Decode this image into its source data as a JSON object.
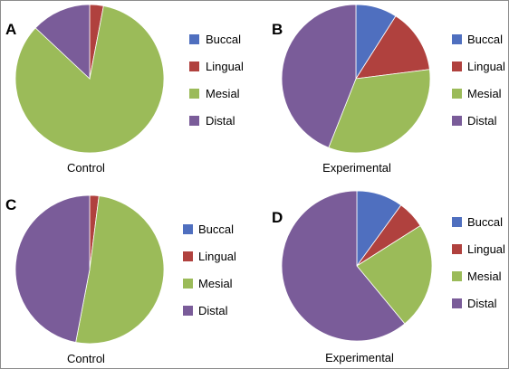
{
  "colors": {
    "Buccal": "#4f6fbf",
    "Lingual": "#b0413e",
    "Mesial": "#9bbb59",
    "Distal": "#7a5c99"
  },
  "chart_data": [
    {
      "type": "pie",
      "panel": "A",
      "caption": "Control",
      "legend_position": "right",
      "slices": [
        {
          "label": "Buccal",
          "value": 0
        },
        {
          "label": "Lingual",
          "value": 3
        },
        {
          "label": "Mesial",
          "value": 84
        },
        {
          "label": "Distal",
          "value": 13
        }
      ]
    },
    {
      "type": "pie",
      "panel": "B",
      "caption": "Experimental",
      "legend_position": "right",
      "slices": [
        {
          "label": "Buccal",
          "value": 9
        },
        {
          "label": "Lingual",
          "value": 14
        },
        {
          "label": "Mesial",
          "value": 33
        },
        {
          "label": "Distal",
          "value": 44
        }
      ]
    },
    {
      "type": "pie",
      "panel": "C",
      "caption": "Control",
      "legend_position": "right",
      "slices": [
        {
          "label": "Buccal",
          "value": 0
        },
        {
          "label": "Lingual",
          "value": 2
        },
        {
          "label": "Mesial",
          "value": 51
        },
        {
          "label": "Distal",
          "value": 47
        }
      ]
    },
    {
      "type": "pie",
      "panel": "D",
      "caption": "Experimental",
      "legend_position": "right",
      "slices": [
        {
          "label": "Buccal",
          "value": 10
        },
        {
          "label": "Lingual",
          "value": 6
        },
        {
          "label": "Mesial",
          "value": 23
        },
        {
          "label": "Distal",
          "value": 61
        }
      ]
    }
  ]
}
